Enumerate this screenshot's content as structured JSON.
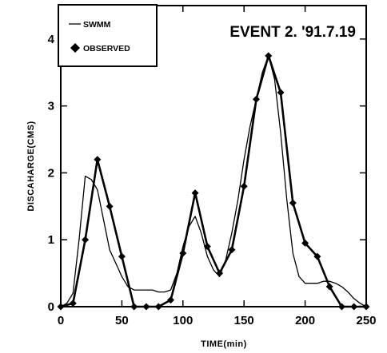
{
  "chart_data": {
    "type": "line",
    "title": "EVENT 2. '91.7.19",
    "xlabel": "TIME(min)",
    "ylabel": "DISCAHARGE(CMS)",
    "xlim": [
      0,
      250
    ],
    "ylim": [
      0,
      4.5
    ],
    "xticks": [
      "0",
      "50",
      "100",
      "150",
      "200",
      "250"
    ],
    "yticks": [
      "0",
      "1",
      "2",
      "3",
      "4"
    ],
    "legend": {
      "position": "top-left"
    },
    "series": [
      {
        "name": "SWMM",
        "marker": "none",
        "line": "thin",
        "x": [
          0,
          5,
          10,
          15,
          20,
          25,
          30,
          35,
          40,
          45,
          50,
          55,
          60,
          65,
          70,
          75,
          80,
          85,
          90,
          95,
          100,
          105,
          110,
          115,
          120,
          125,
          130,
          135,
          140,
          145,
          150,
          155,
          160,
          165,
          170,
          175,
          180,
          185,
          190,
          195,
          200,
          205,
          210,
          215,
          220,
          225,
          230,
          235,
          240,
          245,
          250
        ],
        "y": [
          0,
          0.05,
          0.2,
          1.0,
          1.95,
          1.9,
          1.75,
          1.3,
          0.85,
          0.65,
          0.45,
          0.3,
          0.25,
          0.25,
          0.25,
          0.25,
          0.22,
          0.22,
          0.25,
          0.5,
          0.9,
          1.2,
          1.35,
          1.1,
          0.75,
          0.55,
          0.45,
          0.7,
          1.1,
          1.6,
          2.2,
          2.7,
          3.1,
          3.5,
          3.75,
          3.4,
          2.6,
          1.6,
          0.8,
          0.45,
          0.35,
          0.35,
          0.35,
          0.38,
          0.38,
          0.35,
          0.3,
          0.22,
          0.12,
          0.05,
          0
        ]
      },
      {
        "name": "OBSERVED",
        "marker": "diamond",
        "line": "medium",
        "x": [
          0,
          10,
          20,
          30,
          40,
          50,
          60,
          70,
          80,
          90,
          100,
          110,
          120,
          130,
          140,
          150,
          160,
          170,
          180,
          190,
          200,
          210,
          220,
          230,
          240,
          250
        ],
        "y": [
          0,
          0.05,
          1.0,
          2.2,
          1.5,
          0.75,
          0,
          0,
          0,
          0.1,
          0.8,
          1.7,
          0.9,
          0.5,
          0.85,
          1.8,
          3.1,
          3.75,
          3.2,
          1.55,
          0.95,
          0.75,
          0.3,
          0,
          0,
          0
        ]
      }
    ]
  }
}
